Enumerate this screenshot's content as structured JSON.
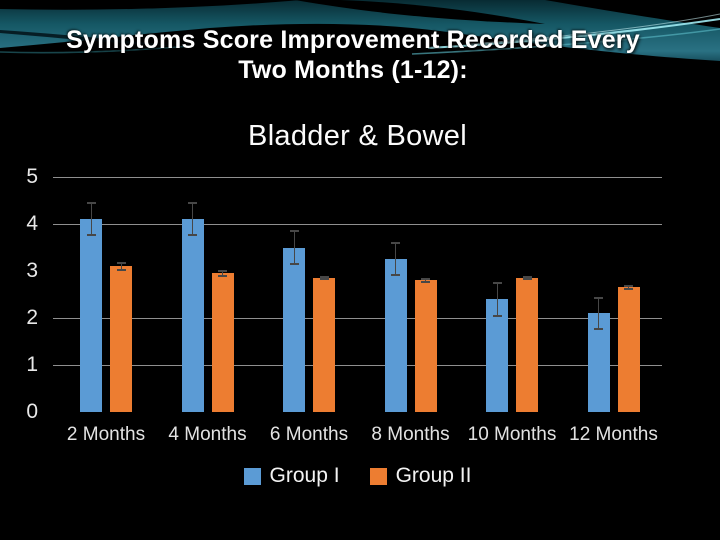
{
  "slide": {
    "title_line1": "Symptoms Score Improvement Recorded Every",
    "title_line2": "Two Months (1-12):"
  },
  "theme": {
    "background": "#000000",
    "title_color": "#ffffff",
    "teal_band": "#1f6472",
    "cyan_accent": "#9feaf2",
    "chart_text_color": "#e8e8e8",
    "gridline_color": "#a8a8a8",
    "error_bar_color": "#474747",
    "group1_color": "#5b9bd5",
    "group2_color": "#ed7d31"
  },
  "chart_data": {
    "type": "bar",
    "title": "Bladder & Bowel",
    "categories": [
      "2 Months",
      "4 Months",
      "6 Months",
      "8 Months",
      "10 Months",
      "12 Months"
    ],
    "series": [
      {
        "name": "Group I",
        "color": "#5b9bd5",
        "values": [
          4.1,
          4.1,
          3.5,
          3.25,
          2.4,
          2.1
        ],
        "errors": [
          0.36,
          0.36,
          0.37,
          0.36,
          0.37,
          0.35
        ]
      },
      {
        "name": "Group II",
        "color": "#ed7d31",
        "values": [
          3.1,
          2.95,
          2.85,
          2.8,
          2.85,
          2.65
        ],
        "errors": [
          0.1,
          0.08,
          0.05,
          0.05,
          0.04,
          0.05
        ]
      }
    ],
    "xlabel": "",
    "ylabel": "",
    "ylim": [
      0,
      5
    ],
    "yticks": [
      0,
      1,
      2,
      3,
      4,
      5
    ],
    "gridline_values": [
      1,
      2,
      4,
      5
    ],
    "grid": "horizontal, missing at 0 and 3",
    "legend_position": "bottom",
    "error_bars": true
  }
}
